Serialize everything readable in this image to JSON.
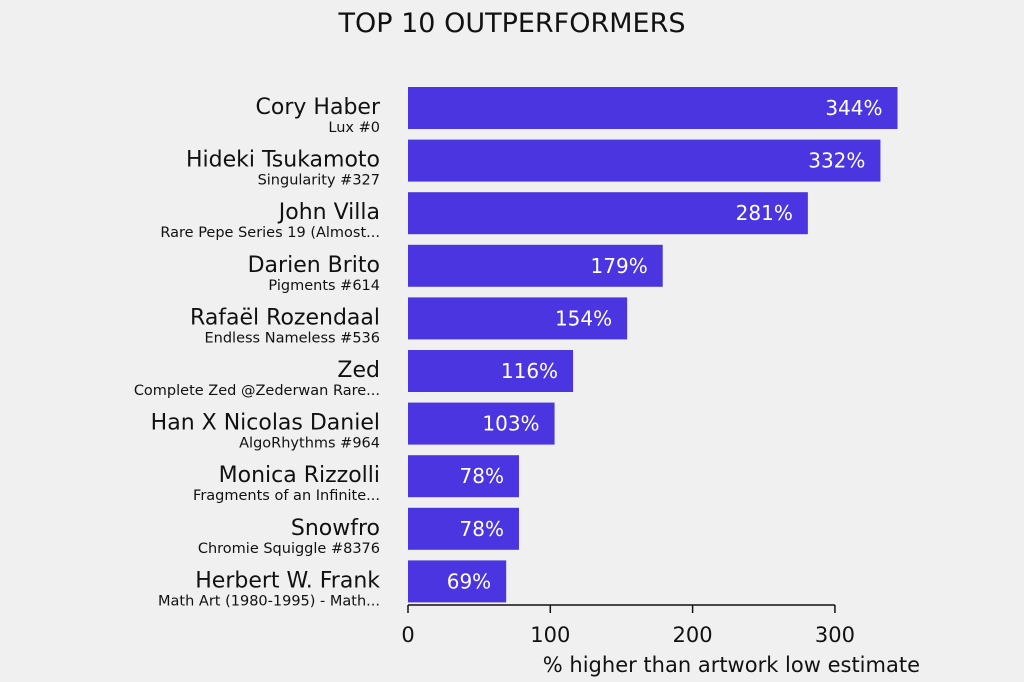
{
  "chart_data": {
    "type": "bar",
    "orientation": "horizontal",
    "title": "TOP 10 OUTPERFORMERS",
    "xlabel": "% higher than artwork low estimate",
    "ylabel": "",
    "xlim": [
      0,
      345
    ],
    "xticks": [
      "0",
      "100",
      "200",
      "300"
    ],
    "xtick_values": [
      0,
      100,
      200,
      300
    ],
    "bar_color": "#4b35e0",
    "grid": false,
    "categories": [
      {
        "artist": "Cory Haber",
        "artwork": "Lux #0"
      },
      {
        "artist": "Hideki Tsukamoto",
        "artwork": "Singularity #327"
      },
      {
        "artist": "John Villa",
        "artwork": "Rare Pepe Series 19 (Almost..."
      },
      {
        "artist": "Darien Brito",
        "artwork": "Pigments #614"
      },
      {
        "artist": "Rafaël Rozendaal",
        "artwork": "Endless Nameless #536"
      },
      {
        "artist": "Zed",
        "artwork": "Complete Zed @Zederwan Rare..."
      },
      {
        "artist": "Han X Nicolas Daniel",
        "artwork": "AlgoRhythms #964"
      },
      {
        "artist": "Monica Rizzolli",
        "artwork": "Fragments of an Infinite..."
      },
      {
        "artist": "Snowfro",
        "artwork": "Chromie Squiggle #8376"
      },
      {
        "artist": "Herbert W. Frank",
        "artwork": "Math Art (1980-1995) - Math..."
      }
    ],
    "values": [
      344,
      332,
      281,
      179,
      154,
      116,
      103,
      78,
      78,
      69
    ],
    "value_labels": [
      "344%",
      "332%",
      "281%",
      "179%",
      "154%",
      "116%",
      "103%",
      "78%",
      "78%",
      "69%"
    ]
  }
}
